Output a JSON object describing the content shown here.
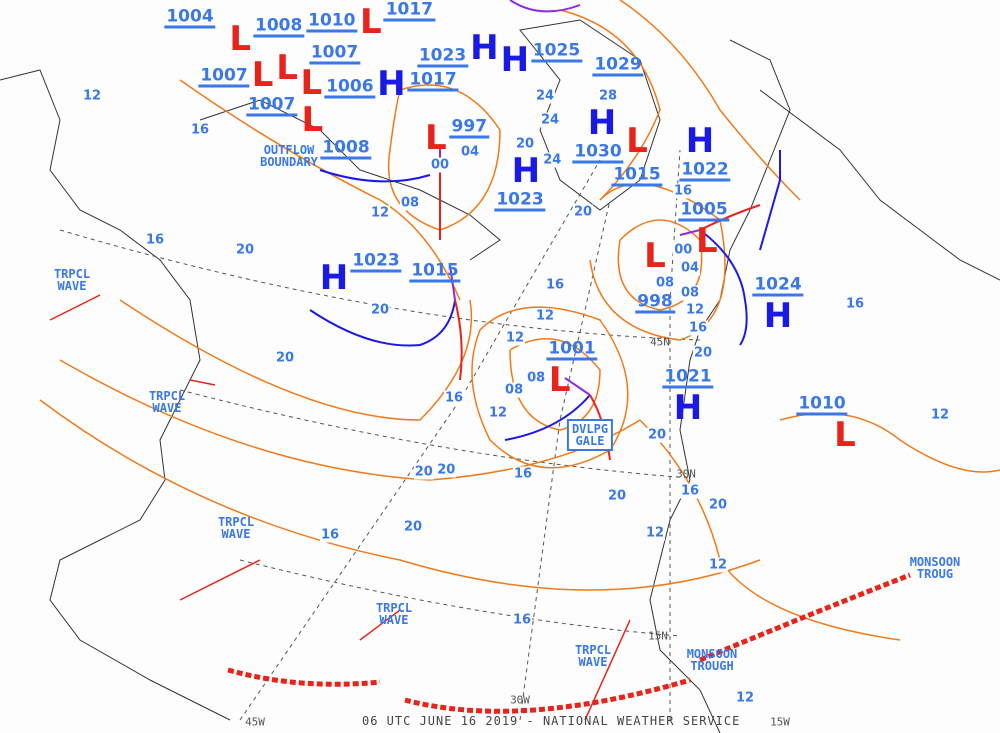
{
  "footer": "06 UTC JUNE 16 2019 - NATIONAL WEATHER SERVICE",
  "colors": {
    "high": "#1a1ae6",
    "low": "#e8231a",
    "isobar": "#f07a1a",
    "label": "#3a78e8",
    "cold_front": "#1a1ae6",
    "warm_front": "#e8231a",
    "occluded_front": "#8a2be2",
    "trough": "#e8231a"
  },
  "pressure_centers": [
    {
      "type": "",
      "pressure": "1004"
    },
    {
      "type": "L",
      "pressure": "1008"
    },
    {
      "type": "L",
      "pressure": "1010"
    },
    {
      "type": "",
      "pressure": "1017"
    },
    {
      "type": "L",
      "pressure": "1007"
    },
    {
      "type": "L",
      "pressure": "1007"
    },
    {
      "type": "L",
      "pressure": "1006"
    },
    {
      "type": "H",
      "pressure": "1017"
    },
    {
      "type": "L",
      "pressure": "1007"
    },
    {
      "type": "",
      "pressure": "1008"
    },
    {
      "type": "H",
      "pressure": "1023"
    },
    {
      "type": "L",
      "pressure": "997"
    },
    {
      "type": "H",
      "pressure": "1025"
    },
    {
      "type": "",
      "pressure": "1029"
    },
    {
      "type": "H",
      "pressure": "1030"
    },
    {
      "type": "L",
      "pressure": "1015"
    },
    {
      "type": "H",
      "pressure": "1022"
    },
    {
      "type": "H",
      "pressure": "1023"
    },
    {
      "type": "L",
      "pressure": "1005"
    },
    {
      "type": "L",
      "pressure": "998"
    },
    {
      "type": "H",
      "pressure": "1023"
    },
    {
      "type": "",
      "pressure": "1015"
    },
    {
      "type": "H",
      "pressure": "1024"
    },
    {
      "type": "L",
      "pressure": "1001"
    },
    {
      "type": "H",
      "pressure": "1021"
    },
    {
      "type": "L",
      "pressure": "1010"
    }
  ],
  "isobar_labels": [
    "12",
    "16",
    "16",
    "20",
    "20",
    "20",
    "20",
    "12",
    "08",
    "04",
    "00",
    "20",
    "24",
    "24",
    "28",
    "24",
    "20",
    "12",
    "08",
    "16",
    "16",
    "20",
    "08",
    "04",
    "00",
    "08",
    "12",
    "16",
    "20",
    "12",
    "08",
    "12",
    "16",
    "16",
    "20",
    "20",
    "20",
    "16",
    "16",
    "12",
    "12",
    "12",
    "16",
    "20",
    "12",
    "16"
  ],
  "feature_labels": [
    "OUTFLOW\nBOUNDARY",
    "TRPCL\nWAVE",
    "TRPCL\nWAVE",
    "TRPCL\nWAVE",
    "TRPCL\nWAVE",
    "TRPCL\nWAVE",
    "MONSOON\nTROUGH",
    "MONSOON\nTROUG",
    "DVLPG\nGALE"
  ],
  "grid_labels": [
    "45N",
    "30N",
    "15N",
    "45W",
    "30W",
    "15W"
  ]
}
